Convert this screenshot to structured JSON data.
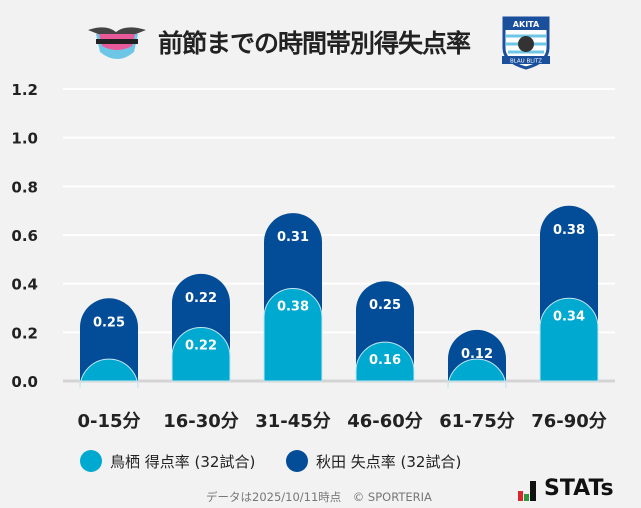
{
  "chart_data": {
    "type": "bar",
    "stacked": true,
    "title": "前節までの時間帯別得失点率",
    "categories": [
      "0-15分",
      "16-30分",
      "31-45分",
      "46-60分",
      "61-75分",
      "76-90分"
    ],
    "series": [
      {
        "name": "鳥栖 得点率 (32試合)",
        "color": "#00a9d0",
        "values": [
          0.09,
          0.22,
          0.38,
          0.16,
          0.09,
          0.34
        ],
        "labels": [
          null,
          "0.22",
          "0.38",
          "0.16",
          null,
          "0.34"
        ]
      },
      {
        "name": "秋田 失点率 (32試合)",
        "color": "#034c97",
        "values": [
          0.25,
          0.22,
          0.31,
          0.25,
          0.12,
          0.38
        ],
        "labels": [
          "0.25",
          "0.22",
          "0.31",
          "0.25",
          "0.12",
          "0.38"
        ]
      }
    ],
    "yticks": [
      "0.0",
      "0.2",
      "0.4",
      "0.6",
      "0.8",
      "1.0",
      "1.2"
    ],
    "ylim": [
      0,
      1.2
    ],
    "grid": true,
    "legend": "bottom"
  },
  "logos": {
    "home": "sagantosu",
    "away_top": "AKITA",
    "away_bottom": "BLAU BLITZ"
  },
  "footer": "データは2025/10/11時点　© SPORTERIA",
  "brand": "STATs"
}
